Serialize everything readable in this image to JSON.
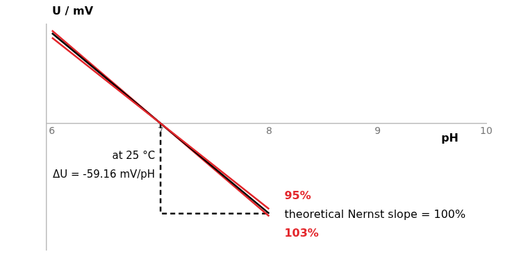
{
  "chart_data": {
    "type": "line",
    "x_label": "pH",
    "y_label": "U / mV",
    "x": [
      6,
      7,
      8
    ],
    "xlim": [
      5.95,
      10
    ],
    "xticks": [
      6,
      7,
      8,
      9,
      10
    ],
    "ylim": [
      -83,
      65
    ],
    "yticks": [],
    "tick_labels": "x",
    "grid": false,
    "series": [
      {
        "name": "95%",
        "color": "#e3262b",
        "values": [
          56.2,
          0,
          -56.2
        ]
      },
      {
        "name": "theoretical Nernst slope = 100%",
        "color": "#000000",
        "values": [
          59.16,
          0,
          -59.16
        ]
      },
      {
        "name": "103%",
        "color": "#e3262b",
        "values": [
          60.93,
          0,
          -60.93
        ]
      }
    ],
    "guide": {
      "x": [
        7,
        7,
        8
      ],
      "values": [
        0,
        -59.16,
        -59.16
      ],
      "color": "#000000",
      "line_style": "dashed"
    },
    "annotations": [
      "at 25 °C",
      "ΔU = -59.16 mV/pH"
    ]
  }
}
